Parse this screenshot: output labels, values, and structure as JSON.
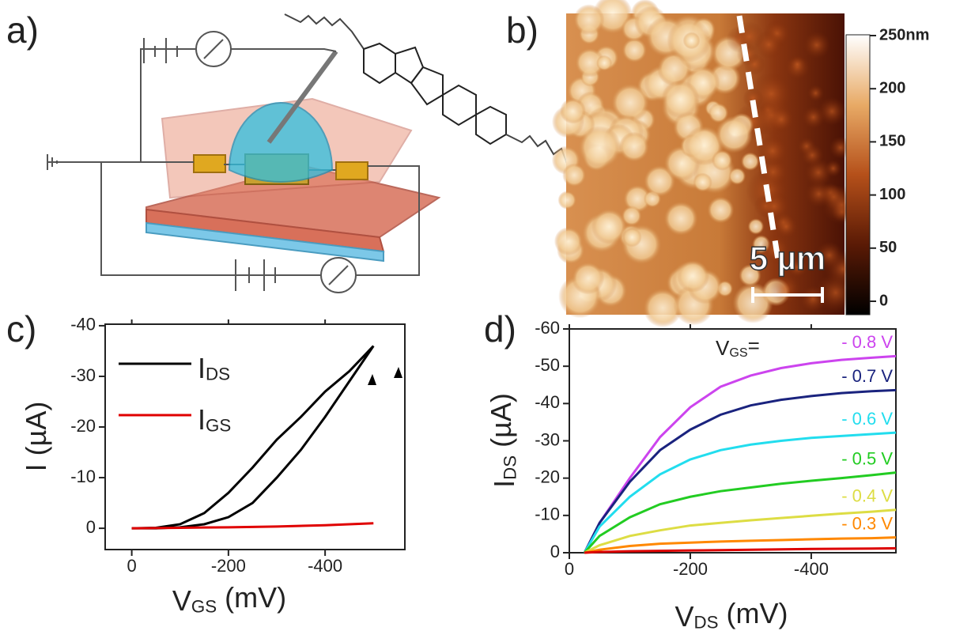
{
  "panel_labels": [
    "a)",
    "b)",
    "c)",
    "d)"
  ],
  "afm_image": {
    "scale_bar": "5 µm",
    "colorbar": {
      "ylim": [
        0,
        250
      ],
      "yticks": [
        0,
        50,
        100,
        150,
        200,
        {
          "value": 250,
          "label": "250nm"
        }
      ]
    }
  },
  "chart_data": [
    {
      "type": "line",
      "x_label": {
        "main": "V",
        "sub": "GS",
        "unit": " (mV)"
      },
      "y_label": {
        "main": "I",
        "unit": " (µA)"
      },
      "xlim": [
        55,
        -565
      ],
      "ylim": [
        4.2,
        -40.3
      ],
      "xticks": [
        0,
        -200,
        -400
      ],
      "yticks": [
        0,
        -10,
        -20,
        -30,
        -40
      ],
      "series": [
        {
          "name": "I",
          "name_sub": "DS",
          "color": "#000000",
          "x": [
            0,
            -50,
            -100,
            -150,
            -200,
            -250,
            -300,
            -350,
            -400,
            -450,
            -500,
            -450,
            -400,
            -350,
            -300,
            -250,
            -200,
            -150,
            -100,
            -50,
            0
          ],
          "values": [
            0,
            0,
            -0.2,
            -0.8,
            -2.2,
            -5,
            -10,
            -15.5,
            -22,
            -29,
            -36,
            -31,
            -27,
            -22,
            -17.5,
            -12,
            -7,
            -3,
            -0.8,
            -0.1,
            0
          ]
        },
        {
          "name": "I",
          "name_sub": "GS",
          "color": "#e00000",
          "x": [
            0,
            -100,
            -200,
            -300,
            -400,
            -500
          ],
          "values": [
            0,
            -0.1,
            -0.2,
            -0.35,
            -0.6,
            -1
          ]
        }
      ]
    },
    {
      "type": "line",
      "x_label": {
        "main": "V",
        "sub": "DS",
        "unit": " (mV)"
      },
      "y_label": {
        "main": "I",
        "sub": "DS",
        "unit": " (µA)"
      },
      "annotation": {
        "main": "V",
        "sub": "GS",
        "suffix": "="
      },
      "xlim": [
        0,
        -540
      ],
      "ylim": [
        0,
        -60
      ],
      "xticks": [
        0,
        -200,
        -400
      ],
      "yticks": [
        0,
        -10,
        -20,
        -30,
        -40,
        -50,
        -60
      ],
      "x": [
        -25,
        -50,
        -100,
        -150,
        -200,
        -250,
        -300,
        -350,
        -400,
        -450,
        -500,
        -540
      ],
      "series": [
        {
          "name": "- 0.8 V",
          "color": "#cc44ee",
          "values": [
            0,
            -8,
            -20,
            -31,
            -39,
            -44.5,
            -47.5,
            -49.5,
            -50.8,
            -51.7,
            -52.3,
            -52.7
          ]
        },
        {
          "name": "- 0.7 V",
          "color": "#1a237e",
          "values": [
            0,
            -8,
            -19,
            -27.5,
            -33,
            -37,
            -39.5,
            -41,
            -42,
            -42.8,
            -43.3,
            -43.6
          ]
        },
        {
          "name": "- 0.6 V",
          "color": "#22ddee",
          "values": [
            0,
            -7,
            -15,
            -21,
            -25,
            -27.5,
            -29,
            -30,
            -30.8,
            -31.3,
            -31.8,
            -32.2
          ]
        },
        {
          "name": "- 0.5 V",
          "color": "#22cc22",
          "values": [
            0,
            -4.5,
            -9.5,
            -13,
            -15,
            -16.5,
            -17.5,
            -18.5,
            -19.3,
            -20,
            -20.8,
            -21.5
          ]
        },
        {
          "name": "- 0.4 V",
          "color": "#dddd44",
          "values": [
            0,
            -2,
            -4.5,
            -6,
            -7.3,
            -8,
            -8.7,
            -9.3,
            -9.9,
            -10.5,
            -11,
            -11.5
          ]
        },
        {
          "name": "- 0.3 V",
          "color": "#ff8800",
          "values": [
            0,
            -0.8,
            -1.8,
            -2.4,
            -2.7,
            -3,
            -3.2,
            -3.4,
            -3.6,
            -3.8,
            -3.9,
            -4.1
          ]
        },
        {
          "color": "#dd0000",
          "values": [
            0,
            -0.2,
            -0.4,
            -0.5,
            -0.6,
            -0.7,
            -0.8,
            -0.9,
            -1,
            -1.05,
            -1.1,
            -1.2
          ]
        }
      ]
    }
  ]
}
